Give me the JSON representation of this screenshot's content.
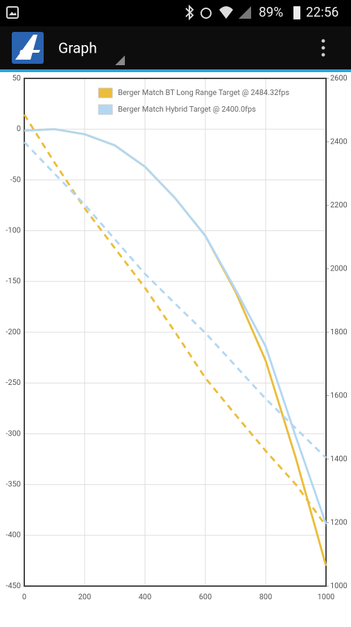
{
  "status_bar": {
    "battery": "89%",
    "time": "22:56"
  },
  "app_bar": {
    "title": "Graph"
  },
  "chart_data": {
    "type": "line",
    "x": [
      0,
      100,
      200,
      300,
      400,
      500,
      600,
      700,
      800,
      900,
      1000
    ],
    "xlim": [
      0,
      1000
    ],
    "xticks": [
      0,
      200,
      400,
      600,
      800,
      1000
    ],
    "ylim": [
      -450,
      50
    ],
    "yticks": [
      -450,
      -400,
      -350,
      -300,
      -250,
      -200,
      -150,
      -100,
      -50,
      0,
      50
    ],
    "y2lim": [
      1000,
      2600
    ],
    "y2ticks": [
      1000,
      1200,
      1400,
      1600,
      1800,
      2000,
      2200,
      2400,
      2600
    ],
    "grid": true,
    "legend": "top-right",
    "series": [
      {
        "name": "Berger Match BT Long Range Target @ 2484.32fps",
        "color": "#ecbd3a",
        "values": [
          -1.5,
          0,
          -5,
          -16,
          -37,
          -68,
          -105,
          -160,
          -228,
          -324,
          -430
        ]
      },
      {
        "name": "Berger Match Hybrid Target @ 2400.0fps",
        "color": "#b3d7f2",
        "values": [
          -1.5,
          0,
          -5,
          -16,
          -37,
          -68,
          -105,
          -158,
          -214,
          -303,
          -389
        ]
      },
      {
        "color": "#ecbd3a",
        "axis": "y2",
        "dash": true,
        "values": [
          2486,
          2335,
          2191,
          2065,
          1940,
          1800,
          1656,
          1540,
          1426,
          1320,
          1190
        ]
      },
      {
        "color": "#b3d7f2",
        "axis": "y2",
        "dash": true,
        "values": [
          2399,
          2300,
          2202,
          2093,
          1984,
          1890,
          1798,
          1694,
          1590,
          1497,
          1404
        ]
      }
    ]
  }
}
